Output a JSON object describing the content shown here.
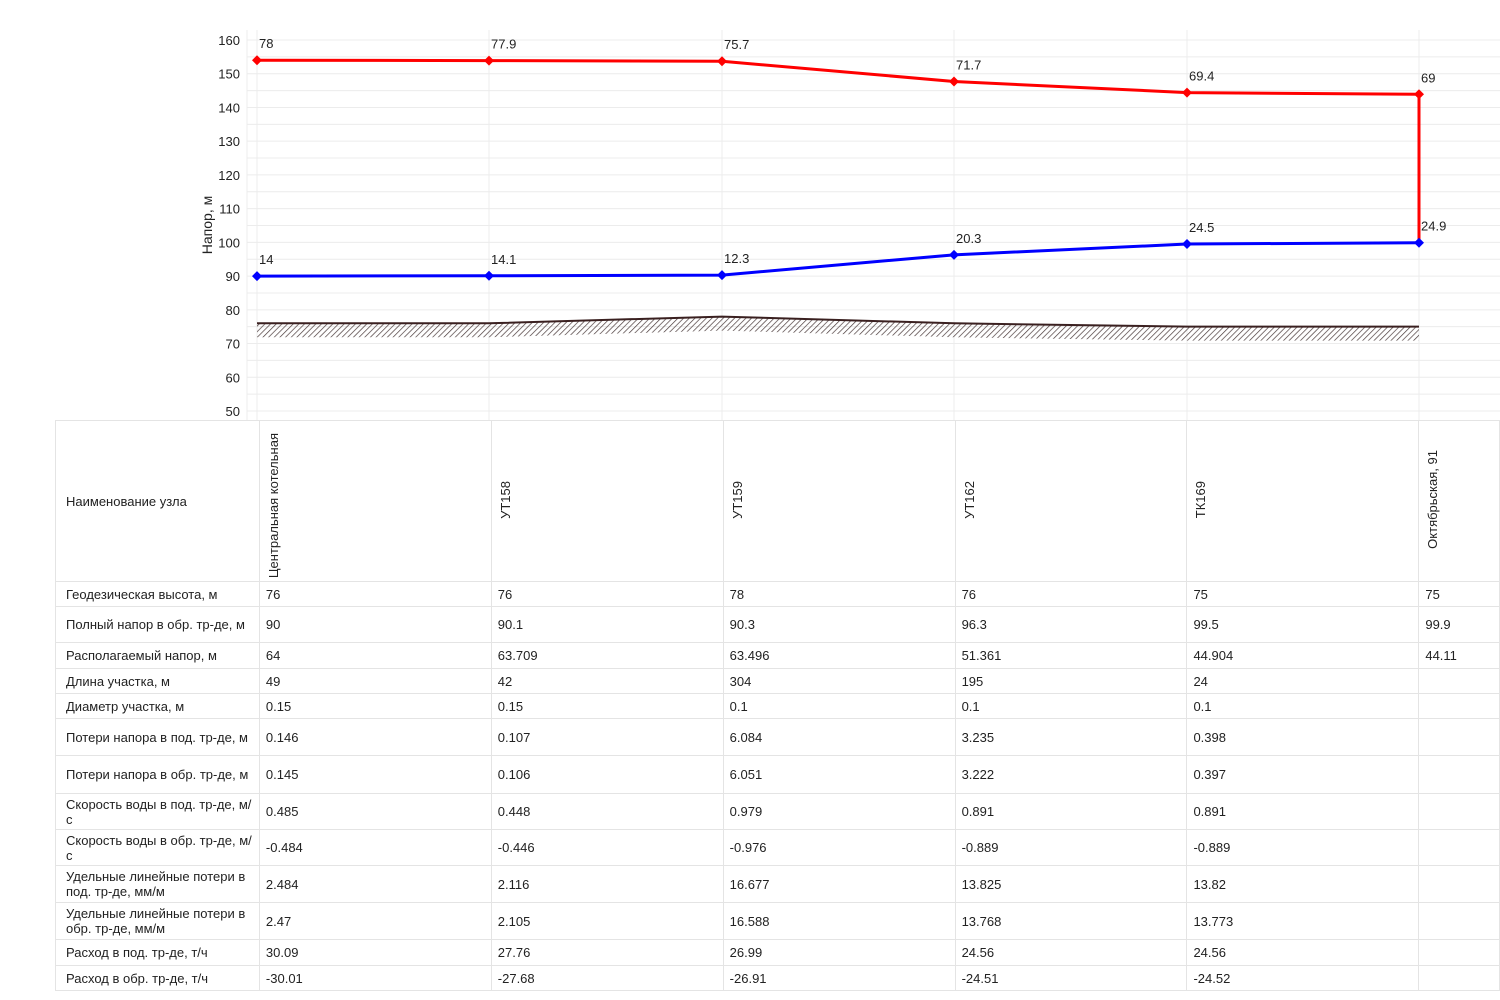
{
  "chart_data": {
    "type": "line",
    "ylabel": "Напор, м",
    "ylim": [
      50,
      160
    ],
    "yticks": [
      50,
      60,
      70,
      80,
      90,
      100,
      110,
      120,
      130,
      140,
      150,
      160
    ],
    "grid": true,
    "categories": [
      "Центральная котельная",
      "УТ158",
      "УТ159",
      "УТ162",
      "ТК169",
      "Октябрьская, 91"
    ],
    "series": [
      {
        "color": "#ff0000",
        "values": [
          154,
          153.9,
          153.7,
          147.7,
          144.4,
          143.9
        ],
        "labels": [
          "78",
          "77.9",
          "75.7",
          "71.7",
          "69.4",
          "69"
        ]
      },
      {
        "color": "#0000ff",
        "values": [
          90,
          90.1,
          90.3,
          96.3,
          99.5,
          99.9
        ],
        "labels": [
          "14",
          "14.1",
          "12.3",
          "20.3",
          "24.5",
          "24.9"
        ]
      }
    ],
    "ground": {
      "color": "#3a2020",
      "values": [
        76,
        76,
        78,
        76,
        75,
        75
      ]
    }
  },
  "table": {
    "header_label": "Наименование узла",
    "nodes": [
      "Центральная котельная",
      "УТ158",
      "УТ159",
      "УТ162",
      "ТК169",
      "Октябрьская, 91"
    ],
    "rows": [
      {
        "label": "Геодезическая высота, м",
        "values": [
          "76",
          "76",
          "78",
          "76",
          "75",
          "75"
        ]
      },
      {
        "label": "Полный напор в обр. тр-де, м",
        "values": [
          "90",
          "90.1",
          "90.3",
          "96.3",
          "99.5",
          "99.9"
        ]
      },
      {
        "label": "Располагаемый напор, м",
        "values": [
          "64",
          "63.709",
          "63.496",
          "51.361",
          "44.904",
          "44.11"
        ]
      },
      {
        "label": "Длина участка, м",
        "values": [
          "49",
          "42",
          "304",
          "195",
          "24",
          ""
        ]
      },
      {
        "label": "Диаметр участка, м",
        "values": [
          "0.15",
          "0.15",
          "0.1",
          "0.1",
          "0.1",
          ""
        ]
      },
      {
        "label": "Потери напора в под. тр-де, м",
        "values": [
          "0.146",
          "0.107",
          "6.084",
          "3.235",
          "0.398",
          ""
        ]
      },
      {
        "label": "Потери напора в обр. тр-де, м",
        "values": [
          "0.145",
          "0.106",
          "6.051",
          "3.222",
          "0.397",
          ""
        ]
      },
      {
        "label": "Скорость воды в под. тр-де, м/с",
        "values": [
          "0.485",
          "0.448",
          "0.979",
          "0.891",
          "0.891",
          ""
        ]
      },
      {
        "label": "Скорость воды в обр. тр-де, м/с",
        "values": [
          "-0.484",
          "-0.446",
          "-0.976",
          "-0.889",
          "-0.889",
          ""
        ]
      },
      {
        "label": "Удельные линейные потери в под. тр-де, мм/м",
        "values": [
          "2.484",
          "2.116",
          "16.677",
          "13.825",
          "13.82",
          ""
        ]
      },
      {
        "label": "Удельные линейные потери в обр. тр-де, мм/м",
        "values": [
          "2.47",
          "2.105",
          "16.588",
          "13.768",
          "13.773",
          ""
        ]
      },
      {
        "label": "Расход в под. тр-де, т/ч",
        "values": [
          "30.09",
          "27.76",
          "26.99",
          "24.56",
          "24.56",
          ""
        ]
      },
      {
        "label": "Расход в обр. тр-де, т/ч",
        "values": [
          "-30.01",
          "-27.68",
          "-26.91",
          "-24.51",
          "-24.52",
          ""
        ]
      }
    ]
  }
}
